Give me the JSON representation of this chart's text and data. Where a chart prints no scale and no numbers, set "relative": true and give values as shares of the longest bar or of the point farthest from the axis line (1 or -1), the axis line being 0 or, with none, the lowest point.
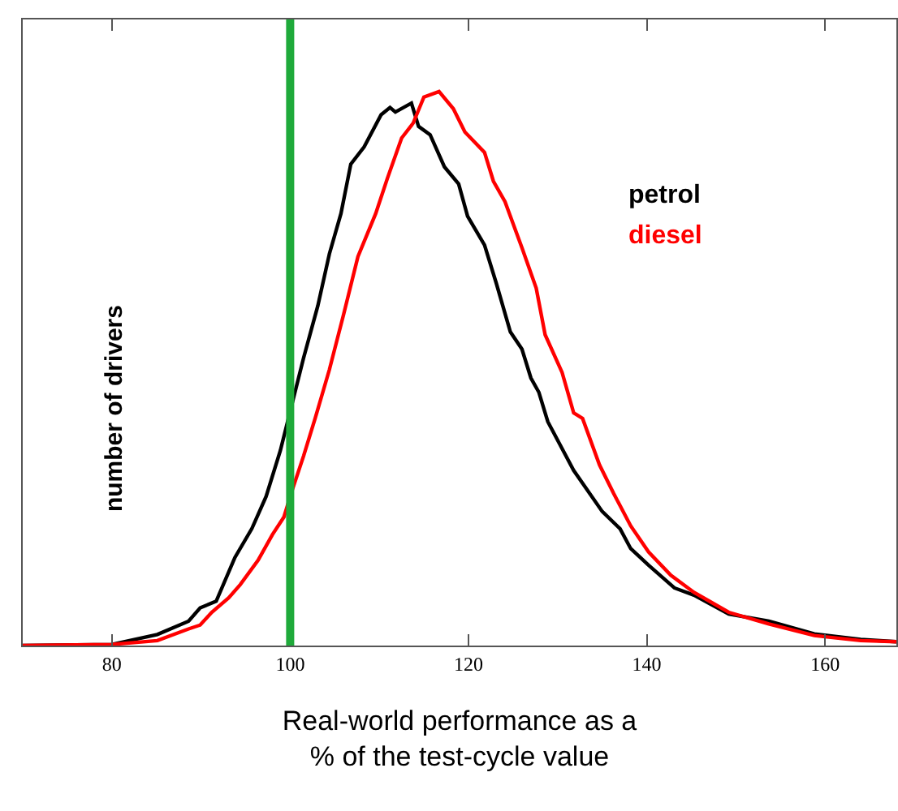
{
  "chart_data": {
    "type": "line",
    "relative": true,
    "xlabel": "Real-world performance as a\n% of the test-cycle value",
    "ylabel": "number of drivers",
    "xlim": [
      70,
      168
    ],
    "xticks": [
      80,
      100,
      120,
      140,
      160
    ],
    "tick_labels": "x",
    "legend": false,
    "series": [
      {
        "name": "petrol",
        "color": "#000000",
        "x": [
          70,
          80,
          85.1,
          88.6,
          89.9,
          91.7,
          93.8,
          95.7,
          97.3,
          98.9,
          101.5,
          103.1,
          104.4,
          105.7,
          106.8,
          108.3,
          110.2,
          111.2,
          111.8,
          113.6,
          114.4,
          115.7,
          117.3,
          118.9,
          119.9,
          121.8,
          123.1,
          124.7,
          126.0,
          127.0,
          127.9,
          128.9,
          131.8,
          135.0,
          137.0,
          138.2,
          140.2,
          143.1,
          145.3,
          149.2,
          153.7,
          158.8,
          164.0,
          168
        ],
        "values": [
          0,
          0.002,
          0.02,
          0.044,
          0.068,
          0.08,
          0.159,
          0.211,
          0.269,
          0.352,
          0.519,
          0.613,
          0.707,
          0.78,
          0.869,
          0.9,
          0.958,
          0.971,
          0.963,
          0.979,
          0.937,
          0.922,
          0.864,
          0.833,
          0.775,
          0.723,
          0.655,
          0.566,
          0.535,
          0.483,
          0.457,
          0.404,
          0.316,
          0.242,
          0.211,
          0.175,
          0.145,
          0.104,
          0.091,
          0.057,
          0.044,
          0.021,
          0.011,
          0.007
        ]
      },
      {
        "name": "diesel",
        "color": "#ff0000",
        "x": [
          70,
          80,
          85.1,
          88.6,
          89.9,
          91.2,
          93.1,
          94.4,
          96.4,
          98.0,
          99.3,
          100.2,
          101.5,
          102.8,
          104.4,
          106.0,
          107.6,
          109.6,
          110.9,
          112.5,
          113.8,
          115.0,
          116.7,
          118.3,
          119.6,
          121.8,
          122.8,
          124.1,
          126.0,
          127.6,
          128.6,
          130.5,
          131.8,
          132.8,
          134.7,
          136.3,
          138.2,
          140.2,
          142.7,
          145.3,
          149.2,
          153.7,
          158.8,
          164.0,
          168
        ],
        "values": [
          0,
          0.002,
          0.009,
          0.03,
          0.037,
          0.06,
          0.086,
          0.11,
          0.154,
          0.2,
          0.232,
          0.279,
          0.342,
          0.41,
          0.498,
          0.598,
          0.702,
          0.78,
          0.843,
          0.916,
          0.943,
          0.99,
          1.0,
          0.969,
          0.927,
          0.89,
          0.838,
          0.801,
          0.718,
          0.645,
          0.561,
          0.493,
          0.42,
          0.41,
          0.326,
          0.274,
          0.216,
          0.169,
          0.127,
          0.096,
          0.06,
          0.039,
          0.018,
          0.009,
          0.007
        ]
      }
    ],
    "ref_lines": [
      {
        "axis": "x",
        "value": 100,
        "color": "#1faa3a"
      }
    ]
  }
}
